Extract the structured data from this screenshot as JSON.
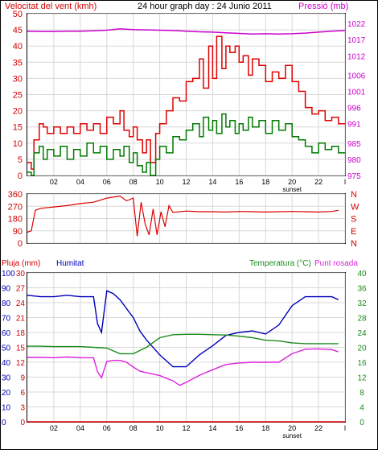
{
  "header": {
    "wind_label": "Velocitat del vent (kmh)",
    "title": "24 hour graph day : 24 Junio 2011",
    "pressure_label": "Pressió (mb)"
  },
  "bottom_header": {
    "rain_label": "Pluja (mm)",
    "humidity_label": "Humitat",
    "temp_label": "Temperatura (°C)",
    "dew_label": "Punt rosada"
  },
  "x_ticks": [
    "02",
    "04",
    "06",
    "08",
    "10",
    "12",
    "14",
    "16",
    "18",
    "20",
    "22",
    "l"
  ],
  "sunset_label": "sunset",
  "colors": {
    "wind_gust": "#e00000",
    "wind_avg": "#007a00",
    "pressure": "#cc00cc",
    "humidity": "#0000bb",
    "temperature": "#1a8a1a",
    "dew_point": "#dd22dd",
    "rain": "#dd0000",
    "direction": "#dd0000",
    "frame": "#000000",
    "grid": "#d8d8d8"
  },
  "chart_data": [
    {
      "type": "line",
      "title": "24 hour graph day : 24 Junio 2011",
      "x_unit": "hour",
      "xlim": [
        0,
        24
      ],
      "y_left": {
        "label": "Velocitat del vent (kmh)",
        "lim": [
          0,
          50
        ],
        "ticks": [
          0,
          5,
          10,
          15,
          20,
          25,
          30,
          35,
          40,
          45,
          50
        ]
      },
      "y_right": {
        "label": "Pressió (mb)",
        "lim": [
          975,
          1025
        ],
        "ticks": [
          975,
          980,
          985,
          991,
          996,
          1001,
          1006,
          1012,
          1017,
          1022
        ]
      },
      "series": [
        {
          "name": "Velocitat del vent (kmh)",
          "role": "gust",
          "axis": "left",
          "color": "#e00000",
          "x": [
            0,
            0.3,
            0.5,
            0.9,
            1.2,
            1.5,
            2,
            2.5,
            3,
            3.5,
            4,
            4.5,
            5,
            5.5,
            6,
            6.5,
            7,
            7.3,
            7.7,
            8,
            8.3,
            8.7,
            9,
            9.3,
            9.7,
            10,
            10.5,
            11,
            11.5,
            12,
            12.5,
            13,
            13.3,
            13.7,
            14,
            14.3,
            14.7,
            15,
            15.3,
            15.7,
            16,
            16.3,
            16.7,
            17,
            17.5,
            18,
            18.5,
            19,
            19.5,
            20,
            20.5,
            21,
            21.5,
            22,
            22.5,
            23,
            23.5
          ],
          "values": [
            4,
            2,
            11,
            16,
            15,
            13,
            15,
            13,
            15,
            13,
            16,
            14,
            16,
            13,
            18,
            16,
            20,
            14,
            12,
            15,
            11,
            7,
            11,
            4,
            13,
            16,
            20,
            24,
            23,
            29,
            30,
            36,
            27,
            40,
            30,
            43,
            33,
            40,
            38,
            40,
            35,
            37,
            31,
            36,
            34,
            29,
            32,
            30,
            34,
            29,
            26,
            21,
            19,
            20,
            17,
            18,
            16
          ]
        },
        {
          "name": "Velocitat del vent (kmh)",
          "role": "average",
          "axis": "left",
          "color": "#007a00",
          "x": [
            0,
            0.3,
            0.5,
            0.9,
            1.2,
            1.5,
            2,
            2.5,
            3,
            3.5,
            4,
            4.5,
            5,
            5.5,
            6,
            6.5,
            7,
            7.3,
            7.7,
            8,
            8.3,
            8.7,
            9,
            9.3,
            9.7,
            10,
            10.5,
            11,
            11.5,
            12,
            12.5,
            13,
            13.3,
            13.7,
            14,
            14.3,
            14.7,
            15,
            15.3,
            15.7,
            16,
            16.3,
            16.7,
            17,
            17.5,
            18,
            18.5,
            19,
            19.5,
            20,
            20.5,
            21,
            21.5,
            22,
            22.5,
            23,
            23.5
          ],
          "values": [
            1,
            0,
            7,
            9,
            5,
            8,
            6,
            9,
            5,
            8,
            6,
            10,
            7,
            9,
            5,
            8,
            6,
            9,
            4,
            7,
            3,
            1,
            4,
            0,
            5,
            9,
            7,
            12,
            11,
            14,
            16,
            12,
            18,
            14,
            17,
            13,
            19,
            15,
            17,
            13,
            16,
            14,
            18,
            15,
            17,
            13,
            17,
            14,
            16,
            12,
            11,
            9,
            7,
            10,
            8,
            9,
            7
          ]
        },
        {
          "name": "Pressió (mb)",
          "axis": "right",
          "color": "#cc00cc",
          "x": [
            0,
            1,
            2,
            3,
            4,
            5,
            6,
            7,
            8,
            9,
            10,
            11,
            12,
            13,
            14,
            15,
            16,
            17,
            18,
            19,
            20,
            21,
            22,
            23,
            24
          ],
          "values": [
            1019.6,
            1019.5,
            1019.5,
            1019.6,
            1019.6,
            1019.7,
            1019.9,
            1020.3,
            1020.1,
            1020.0,
            1019.9,
            1019.8,
            1019.6,
            1019.4,
            1019.3,
            1019.1,
            1018.9,
            1018.7,
            1018.8,
            1018.7,
            1018.8,
            1019.0,
            1019.3,
            1019.6,
            1019.8
          ]
        }
      ]
    },
    {
      "type": "scatter",
      "title": "",
      "x_unit": "hour",
      "xlim": [
        0,
        24
      ],
      "y_left": {
        "lim": [
          0,
          360
        ],
        "ticks": [
          0,
          90,
          180,
          270,
          360
        ]
      },
      "y_right_labels": [
        "N",
        "W",
        "S",
        "E",
        "N"
      ],
      "series": [
        {
          "name": "direction",
          "color": "#dd0000",
          "x": [
            0,
            0.3,
            0.6,
            1,
            2,
            3,
            4,
            5,
            6,
            7,
            7.5,
            8,
            8.3,
            8.6,
            8.9,
            9.2,
            9.5,
            9.8,
            10.1,
            10.4,
            10.7,
            11,
            12,
            13,
            14,
            15,
            16,
            17,
            18,
            19,
            20,
            21,
            22,
            23,
            23.5
          ],
          "values": [
            80,
            90,
            240,
            255,
            265,
            275,
            290,
            300,
            330,
            345,
            310,
            330,
            50,
            300,
            140,
            60,
            250,
            60,
            230,
            120,
            275,
            225,
            235,
            230,
            230,
            228,
            232,
            230,
            228,
            230,
            232,
            230,
            228,
            232,
            240
          ]
        }
      ]
    },
    {
      "type": "line",
      "title": "",
      "x_unit": "hour",
      "xlim": [
        0,
        24
      ],
      "y_left": {
        "label": "Pluja (mm)",
        "lim": [
          0,
          30
        ],
        "ticks": [
          0,
          3,
          6,
          9,
          12,
          15,
          18,
          21,
          24,
          27,
          30
        ]
      },
      "y_left2": {
        "label": "Humitat",
        "lim": [
          0,
          100
        ],
        "ticks": [
          0,
          10,
          20,
          30,
          40,
          50,
          60,
          70,
          80,
          90,
          100
        ]
      },
      "y_right": {
        "label": "Temperatura (°C)",
        "lim": [
          0,
          40
        ],
        "ticks": [
          0,
          4,
          8,
          12,
          16,
          20,
          24,
          28,
          32,
          36,
          40
        ]
      },
      "series": [
        {
          "name": "Humitat",
          "axis": "left2",
          "color": "#0000bb",
          "x": [
            0,
            1,
            2,
            3,
            4,
            4.5,
            5,
            5.3,
            5.6,
            6,
            6.5,
            7,
            7.5,
            8,
            8.5,
            9,
            10,
            11,
            12,
            13,
            14,
            15,
            16,
            17,
            18,
            19,
            20,
            21,
            22,
            23,
            23.5
          ],
          "values": [
            85,
            84,
            84,
            85,
            84,
            84,
            84,
            66,
            60,
            88,
            86,
            82,
            76,
            70,
            61,
            55,
            45,
            37,
            37,
            45,
            51,
            58,
            60,
            61,
            59,
            65,
            78,
            84,
            84,
            84,
            82
          ]
        },
        {
          "name": "Temperatura (°C)",
          "axis": "right",
          "color": "#1a8a1a",
          "x": [
            0,
            1,
            2,
            3,
            4,
            5,
            6,
            7,
            8,
            9,
            10,
            11,
            12,
            13,
            14,
            15,
            16,
            17,
            18,
            19,
            20,
            21,
            22,
            23,
            23.5
          ],
          "values": [
            20.3,
            20.3,
            20.2,
            20.2,
            20.2,
            20.0,
            19.8,
            18.3,
            18.3,
            20.0,
            22.6,
            23.4,
            23.5,
            23.5,
            23.4,
            23.3,
            23.0,
            22.6,
            21.9,
            21.7,
            21.2,
            21.0,
            21.0,
            21.0,
            21.0
          ]
        },
        {
          "name": "Punt rosada",
          "axis": "right",
          "color": "#dd22dd",
          "x": [
            0,
            1,
            2,
            3,
            4,
            5,
            5.3,
            5.6,
            6,
            6.5,
            7,
            7.5,
            8,
            8.5,
            9,
            10,
            11,
            11.5,
            12,
            13,
            14,
            15,
            16,
            17,
            18,
            19,
            20,
            21,
            22,
            23,
            23.5
          ],
          "values": [
            17.3,
            17.3,
            17.2,
            17.4,
            17.2,
            17.2,
            13.5,
            11.8,
            16.2,
            16.5,
            16.5,
            16.0,
            14.7,
            13.6,
            13.2,
            12.4,
            11.0,
            9.8,
            10.6,
            12.5,
            14.0,
            15.4,
            15.8,
            16.0,
            16.0,
            16.0,
            18.3,
            19.5,
            19.6,
            19.4,
            18.8
          ]
        },
        {
          "name": "Pluja (mm)",
          "axis": "left",
          "color": "#dd0000",
          "x": [
            0,
            24
          ],
          "values": [
            0,
            0
          ]
        }
      ]
    }
  ]
}
